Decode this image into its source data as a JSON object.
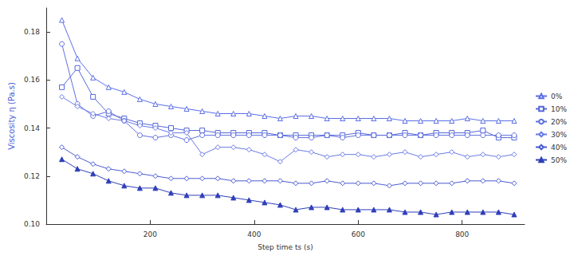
{
  "chart_data": {
    "type": "line",
    "x_label": "Step time ts (s)",
    "y_label": "Viscosity η (Pa.s)",
    "x": [
      30,
      60,
      90,
      120,
      150,
      180,
      210,
      240,
      270,
      300,
      330,
      360,
      390,
      420,
      450,
      480,
      510,
      540,
      570,
      600,
      630,
      660,
      690,
      720,
      750,
      780,
      810,
      840,
      870,
      900
    ],
    "xlim": [
      0,
      920
    ],
    "xticks": [
      200,
      400,
      600,
      800
    ],
    "ylim": [
      0.1,
      0.19
    ],
    "yticks": [
      {
        "value": 0.1,
        "label": "0.10"
      },
      {
        "value": 0.12,
        "label": "0.12"
      },
      {
        "value": 0.14,
        "label": "0.14"
      },
      {
        "value": 0.16,
        "label": "0.16"
      },
      {
        "value": 0.18,
        "label": "0.18"
      }
    ],
    "grid": false,
    "legend": "right",
    "series": [
      {
        "name": "0%",
        "color": "#5a6ee6",
        "marker": "triangle-open",
        "values": [
          0.185,
          0.169,
          0.161,
          0.157,
          0.155,
          0.152,
          0.15,
          0.149,
          0.148,
          0.147,
          0.146,
          0.146,
          0.146,
          0.145,
          0.144,
          0.145,
          0.145,
          0.144,
          0.144,
          0.144,
          0.144,
          0.144,
          0.143,
          0.143,
          0.143,
          0.143,
          0.144,
          0.143,
          0.143,
          0.143
        ]
      },
      {
        "name": "10%",
        "color": "#5467d8",
        "marker": "square-open",
        "values": [
          0.157,
          0.165,
          0.153,
          0.146,
          0.144,
          0.142,
          0.141,
          0.14,
          0.139,
          0.139,
          0.138,
          0.138,
          0.138,
          0.138,
          0.137,
          0.137,
          0.137,
          0.137,
          0.137,
          0.138,
          0.137,
          0.137,
          0.138,
          0.137,
          0.138,
          0.138,
          0.138,
          0.139,
          0.136,
          0.136
        ]
      },
      {
        "name": "20%",
        "color": "#6070e0",
        "marker": "circle-open",
        "values": [
          0.175,
          0.15,
          0.145,
          0.147,
          0.143,
          0.137,
          0.136,
          0.137,
          0.135,
          0.137,
          0.137,
          0.137,
          0.137,
          0.137,
          0.137,
          0.136,
          0.136,
          0.137,
          0.136,
          0.137,
          0.137,
          0.137,
          0.137,
          0.137,
          0.137,
          0.137,
          0.137,
          0.137,
          0.137,
          0.137
        ]
      },
      {
        "name": "30%",
        "color": "#6a7ae6",
        "marker": "diamond-open",
        "values": [
          0.153,
          0.149,
          0.146,
          0.144,
          0.143,
          0.141,
          0.14,
          0.138,
          0.138,
          0.129,
          0.132,
          0.132,
          0.131,
          0.129,
          0.126,
          0.131,
          0.13,
          0.128,
          0.129,
          0.129,
          0.128,
          0.129,
          0.13,
          0.128,
          0.129,
          0.13,
          0.128,
          0.129,
          0.128,
          0.129
        ]
      },
      {
        "name": "40%",
        "color": "#4a5cd4",
        "marker": "diamond-open",
        "values": [
          0.132,
          0.128,
          0.125,
          0.123,
          0.122,
          0.121,
          0.12,
          0.119,
          0.119,
          0.119,
          0.119,
          0.118,
          0.118,
          0.118,
          0.118,
          0.117,
          0.117,
          0.118,
          0.117,
          0.117,
          0.117,
          0.116,
          0.117,
          0.117,
          0.117,
          0.117,
          0.118,
          0.118,
          0.118,
          0.117
        ]
      },
      {
        "name": "50%",
        "color": "#2f3fb8",
        "marker": "triangle",
        "values": [
          0.127,
          0.123,
          0.121,
          0.118,
          0.116,
          0.115,
          0.115,
          0.113,
          0.112,
          0.112,
          0.112,
          0.111,
          0.11,
          0.109,
          0.108,
          0.106,
          0.107,
          0.107,
          0.106,
          0.106,
          0.106,
          0.106,
          0.105,
          0.105,
          0.104,
          0.105,
          0.105,
          0.105,
          0.105,
          0.104
        ]
      }
    ]
  }
}
